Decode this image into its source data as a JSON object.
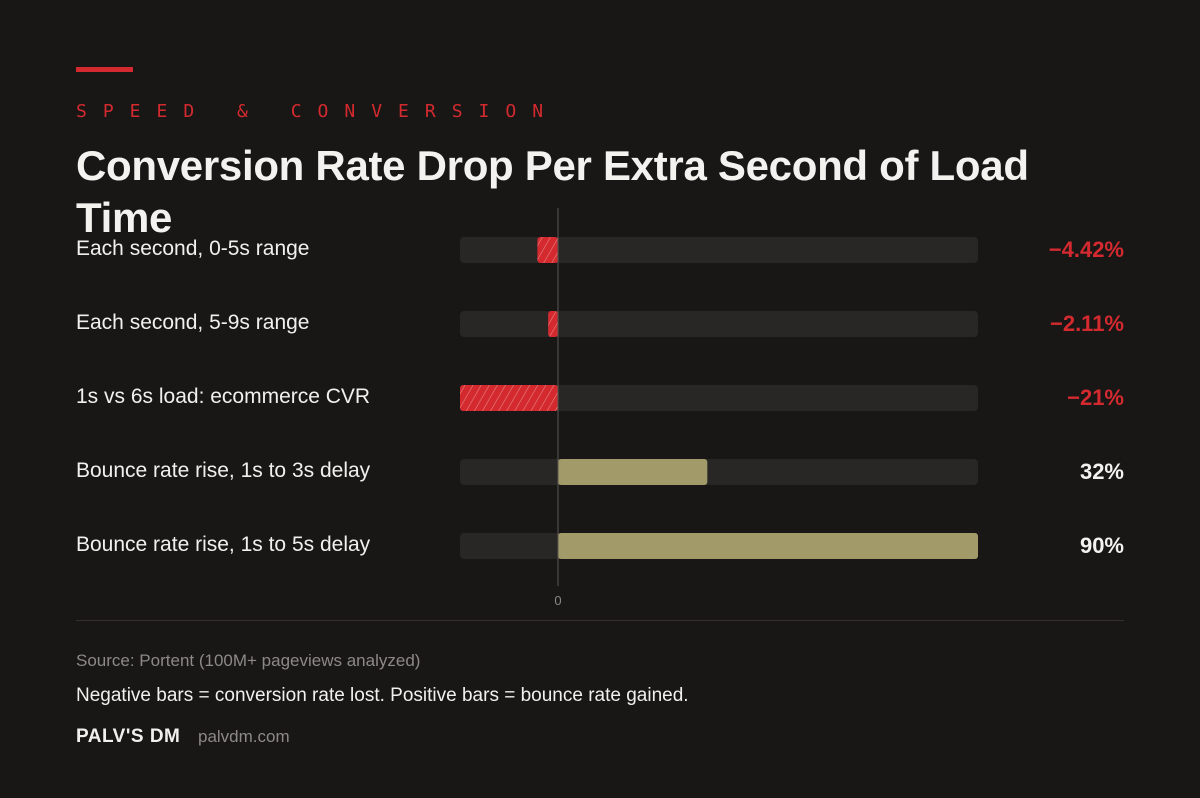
{
  "header": {
    "eyebrow": "SPEED & CONVERSION",
    "title": "Conversion Rate Drop Per Extra Second of Load Time"
  },
  "colors": {
    "background": "#181716",
    "negative": "#d42a2f",
    "positive": "#a39a6a",
    "track": "#292726",
    "text": "#f2f0ec",
    "muted": "#8c8986"
  },
  "chart_data": {
    "type": "bar",
    "orientation": "horizontal",
    "categories": [
      "Each second, 0-5s range",
      "Each second, 5-9s range",
      "1s vs 6s load: ecommerce CVR",
      "Bounce rate rise, 1s to 3s delay",
      "Bounce rate rise, 1s to 5s delay"
    ],
    "values": [
      -4.42,
      -2.11,
      -21,
      32,
      90
    ],
    "value_labels": [
      "−4.42%",
      "−2.11%",
      "−21%",
      "32%",
      "90%"
    ],
    "xlim": [
      -21,
      90
    ],
    "zero_tick_label": "0",
    "title": "Conversion Rate Drop Per Extra Second of Load Time"
  },
  "footer": {
    "source": "Source: Portent (100M+ pageviews analyzed)",
    "note": "Negative bars = conversion rate lost. Positive bars = bounce rate gained.",
    "brand": "PALV'S DM",
    "url": "palvdm.com"
  }
}
